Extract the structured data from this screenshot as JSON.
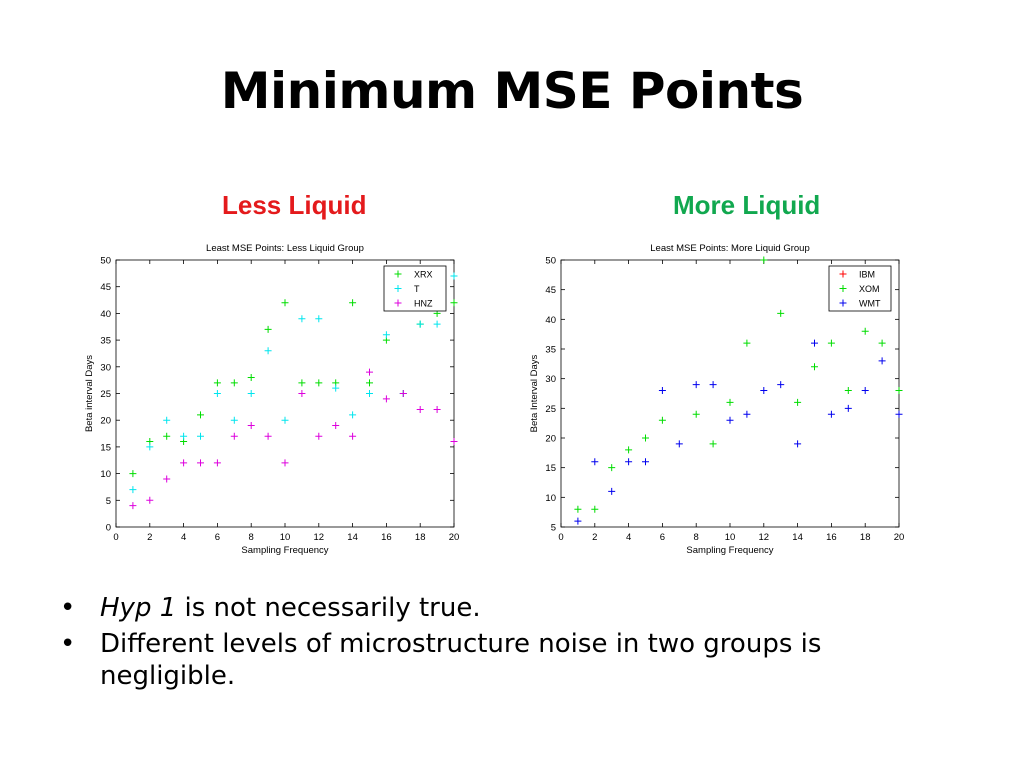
{
  "slide": {
    "title": "Minimum MSE Points",
    "left_heading": "Less Liquid",
    "right_heading": "More Liquid",
    "left_heading_color": "#e41a1c",
    "right_heading_color": "#11a84f",
    "bullet_symbol": "•",
    "bullets": [
      {
        "italic": "Hyp 1",
        "text": " is not necessarily true."
      },
      {
        "italic": "",
        "text": "Different levels of microstructure noise in two groups is negligible."
      }
    ]
  },
  "chart_data": [
    {
      "type": "scatter",
      "title": "Least MSE Points: Less Liquid Group",
      "xlabel": "Sampling Frequency",
      "ylabel": "Beta interval Days",
      "xlim": [
        0,
        20
      ],
      "ylim": [
        0,
        50
      ],
      "xticks": [
        0,
        2,
        4,
        6,
        8,
        10,
        12,
        14,
        16,
        18,
        20
      ],
      "yticks": [
        0,
        5,
        10,
        15,
        20,
        25,
        30,
        35,
        40,
        45,
        50
      ],
      "marker": "+",
      "grid": false,
      "legend_position": "top-right",
      "series": [
        {
          "name": "XRX",
          "color": "#00dd00",
          "x": [
            1,
            2,
            3,
            4,
            5,
            6,
            7,
            8,
            9,
            10,
            11,
            12,
            13,
            14,
            15,
            16,
            17,
            18,
            19,
            20
          ],
          "y": [
            10,
            16,
            17,
            16,
            21,
            27,
            27,
            28,
            37,
            42,
            27,
            27,
            27,
            42,
            27,
            35,
            25,
            38,
            40,
            42
          ]
        },
        {
          "name": "T",
          "color": "#00e5ee",
          "x": [
            1,
            2,
            3,
            4,
            5,
            6,
            7,
            8,
            9,
            10,
            11,
            12,
            13,
            14,
            15,
            16,
            17,
            18,
            19,
            20
          ],
          "y": [
            7,
            15,
            20,
            17,
            17,
            25,
            20,
            25,
            33,
            20,
            39,
            39,
            26,
            21,
            25,
            36,
            25,
            38,
            38,
            47
          ]
        },
        {
          "name": "HNZ",
          "color": "#dd00dd",
          "x": [
            1,
            2,
            3,
            4,
            5,
            6,
            7,
            8,
            9,
            10,
            11,
            12,
            13,
            14,
            15,
            16,
            17,
            18,
            19,
            20
          ],
          "y": [
            4,
            5,
            9,
            12,
            12,
            12,
            17,
            19,
            17,
            12,
            25,
            17,
            19,
            17,
            29,
            24,
            25,
            22,
            22,
            16
          ]
        }
      ]
    },
    {
      "type": "scatter",
      "title": "Least MSE Points: More Liquid Group",
      "xlabel": "Sampling Frequency",
      "ylabel": "Beta Interval Days",
      "xlim": [
        0,
        20
      ],
      "ylim": [
        5,
        50
      ],
      "xticks": [
        0,
        2,
        4,
        6,
        8,
        10,
        12,
        14,
        16,
        18,
        20
      ],
      "yticks": [
        5,
        10,
        15,
        20,
        25,
        30,
        35,
        40,
        45,
        50
      ],
      "marker": "+",
      "grid": false,
      "legend_position": "top-right",
      "series": [
        {
          "name": "IBM",
          "color": "#ff0000",
          "x": [],
          "y": []
        },
        {
          "name": "XOM",
          "color": "#00dd00",
          "x": [
            1,
            2,
            3,
            4,
            5,
            6,
            8,
            9,
            10,
            11,
            12,
            13,
            14,
            15,
            16,
            17,
            18,
            19,
            20
          ],
          "y": [
            8,
            8,
            15,
            18,
            20,
            23,
            24,
            19,
            26,
            36,
            50,
            41,
            26,
            32,
            36,
            28,
            38,
            36,
            28
          ]
        },
        {
          "name": "WMT",
          "color": "#0000ee",
          "x": [
            1,
            2,
            3,
            4,
            5,
            6,
            7,
            8,
            9,
            10,
            11,
            12,
            13,
            14,
            15,
            16,
            17,
            18,
            19,
            20
          ],
          "y": [
            6,
            16,
            11,
            16,
            16,
            28,
            19,
            29,
            29,
            23,
            24,
            28,
            29,
            19,
            36,
            24,
            25,
            28,
            33,
            24
          ]
        }
      ]
    }
  ]
}
